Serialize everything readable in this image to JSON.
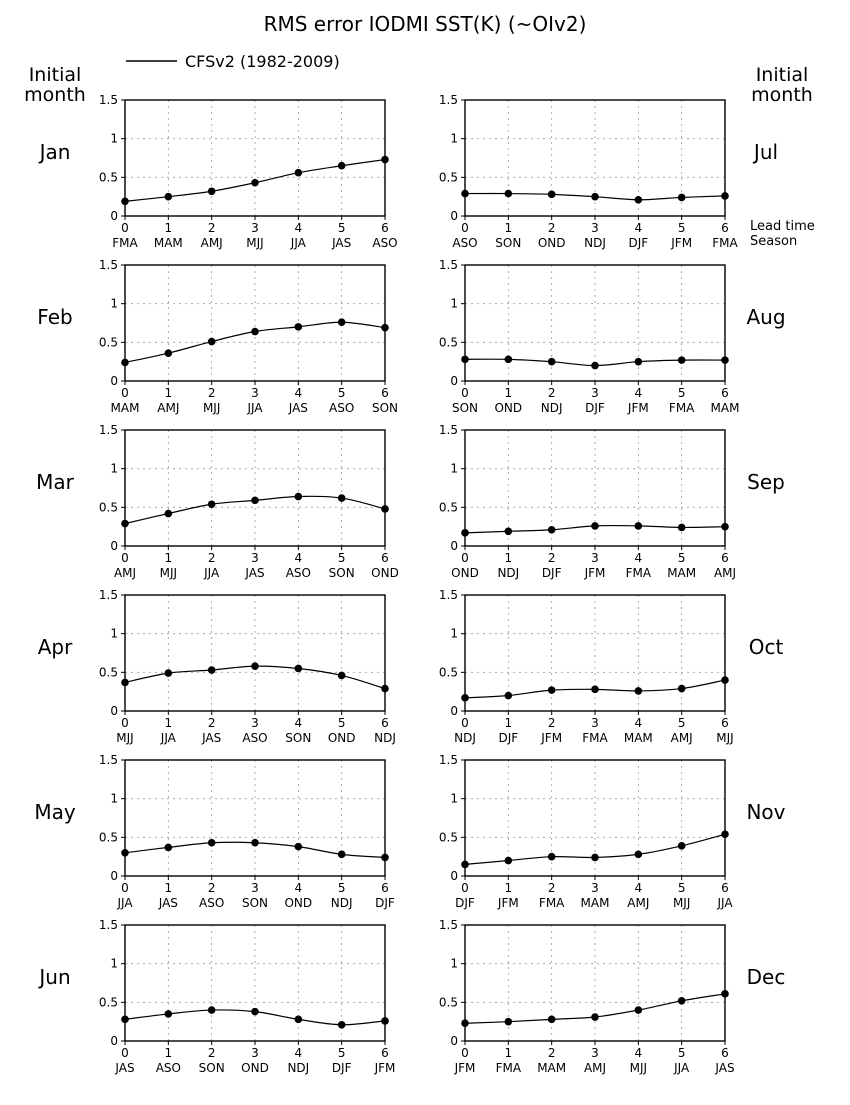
{
  "title": "RMS error IODMI SST(K) (~OIv2)",
  "legend": {
    "label": "CFSv2 (1982-2009)"
  },
  "side_labels": {
    "left": [
      "Initial",
      "month"
    ],
    "right": [
      "Initial",
      "month"
    ]
  },
  "axis_notes": {
    "lead": "Lead time",
    "season": "Season"
  },
  "chart_data": [
    {
      "type": "line",
      "panel_label": "Jan",
      "x": [
        0,
        1,
        2,
        3,
        4,
        5,
        6
      ],
      "x_season_labels": [
        "FMA",
        "MAM",
        "AMJ",
        "MJJ",
        "JJA",
        "JAS",
        "ASO"
      ],
      "series": [
        {
          "name": "CFSv2 (1982-2009)",
          "values": [
            0.19,
            0.25,
            0.32,
            0.43,
            0.56,
            0.65,
            0.73
          ]
        }
      ],
      "ylim": [
        0,
        1.5
      ],
      "yticks": [
        "0",
        "0.5",
        "1",
        "1.5"
      ],
      "grid": true
    },
    {
      "type": "line",
      "panel_label": "Jul",
      "x": [
        0,
        1,
        2,
        3,
        4,
        5,
        6
      ],
      "x_season_labels": [
        "ASO",
        "SON",
        "OND",
        "NDJ",
        "DJF",
        "JFM",
        "FMA"
      ],
      "series": [
        {
          "name": "CFSv2 (1982-2009)",
          "values": [
            0.29,
            0.29,
            0.28,
            0.25,
            0.21,
            0.24,
            0.26
          ]
        }
      ],
      "ylim": [
        0,
        1.5
      ],
      "yticks": [
        "0",
        "0.5",
        "1",
        "1.5"
      ],
      "grid": true
    },
    {
      "type": "line",
      "panel_label": "Feb",
      "x": [
        0,
        1,
        2,
        3,
        4,
        5,
        6
      ],
      "x_season_labels": [
        "MAM",
        "AMJ",
        "MJJ",
        "JJA",
        "JAS",
        "ASO",
        "SON"
      ],
      "series": [
        {
          "name": "CFSv2 (1982-2009)",
          "values": [
            0.24,
            0.36,
            0.51,
            0.64,
            0.7,
            0.76,
            0.69
          ]
        }
      ],
      "ylim": [
        0,
        1.5
      ],
      "yticks": [
        "0",
        "0.5",
        "1",
        "1.5"
      ],
      "grid": true
    },
    {
      "type": "line",
      "panel_label": "Aug",
      "x": [
        0,
        1,
        2,
        3,
        4,
        5,
        6
      ],
      "x_season_labels": [
        "SON",
        "OND",
        "NDJ",
        "DJF",
        "JFM",
        "FMA",
        "MAM"
      ],
      "series": [
        {
          "name": "CFSv2 (1982-2009)",
          "values": [
            0.28,
            0.28,
            0.25,
            0.2,
            0.25,
            0.27,
            0.27
          ]
        }
      ],
      "ylim": [
        0,
        1.5
      ],
      "yticks": [
        "0",
        "0.5",
        "1",
        "1.5"
      ],
      "grid": true
    },
    {
      "type": "line",
      "panel_label": "Mar",
      "x": [
        0,
        1,
        2,
        3,
        4,
        5,
        6
      ],
      "x_season_labels": [
        "AMJ",
        "MJJ",
        "JJA",
        "JAS",
        "ASO",
        "SON",
        "OND"
      ],
      "series": [
        {
          "name": "CFSv2 (1982-2009)",
          "values": [
            0.29,
            0.42,
            0.54,
            0.59,
            0.64,
            0.62,
            0.48
          ]
        }
      ],
      "ylim": [
        0,
        1.5
      ],
      "yticks": [
        "0",
        "0.5",
        "1",
        "1.5"
      ],
      "grid": true
    },
    {
      "type": "line",
      "panel_label": "Sep",
      "x": [
        0,
        1,
        2,
        3,
        4,
        5,
        6
      ],
      "x_season_labels": [
        "OND",
        "NDJ",
        "DJF",
        "JFM",
        "FMA",
        "MAM",
        "AMJ"
      ],
      "series": [
        {
          "name": "CFSv2 (1982-2009)",
          "values": [
            0.17,
            0.19,
            0.21,
            0.26,
            0.26,
            0.24,
            0.25
          ]
        }
      ],
      "ylim": [
        0,
        1.5
      ],
      "yticks": [
        "0",
        "0.5",
        "1",
        "1.5"
      ],
      "grid": true
    },
    {
      "type": "line",
      "panel_label": "Apr",
      "x": [
        0,
        1,
        2,
        3,
        4,
        5,
        6
      ],
      "x_season_labels": [
        "MJJ",
        "JJA",
        "JAS",
        "ASO",
        "SON",
        "OND",
        "NDJ"
      ],
      "series": [
        {
          "name": "CFSv2 (1982-2009)",
          "values": [
            0.37,
            0.49,
            0.53,
            0.58,
            0.55,
            0.46,
            0.29
          ]
        }
      ],
      "ylim": [
        0,
        1.5
      ],
      "yticks": [
        "0",
        "0.5",
        "1",
        "1.5"
      ],
      "grid": true
    },
    {
      "type": "line",
      "panel_label": "Oct",
      "x": [
        0,
        1,
        2,
        3,
        4,
        5,
        6
      ],
      "x_season_labels": [
        "NDJ",
        "DJF",
        "JFM",
        "FMA",
        "MAM",
        "AMJ",
        "MJJ"
      ],
      "series": [
        {
          "name": "CFSv2 (1982-2009)",
          "values": [
            0.17,
            0.2,
            0.27,
            0.28,
            0.26,
            0.29,
            0.4
          ]
        }
      ],
      "ylim": [
        0,
        1.5
      ],
      "yticks": [
        "0",
        "0.5",
        "1",
        "1.5"
      ],
      "grid": true
    },
    {
      "type": "line",
      "panel_label": "May",
      "x": [
        0,
        1,
        2,
        3,
        4,
        5,
        6
      ],
      "x_season_labels": [
        "JJA",
        "JAS",
        "ASO",
        "SON",
        "OND",
        "NDJ",
        "DJF"
      ],
      "series": [
        {
          "name": "CFSv2 (1982-2009)",
          "values": [
            0.3,
            0.37,
            0.43,
            0.43,
            0.38,
            0.28,
            0.24
          ]
        }
      ],
      "ylim": [
        0,
        1.5
      ],
      "yticks": [
        "0",
        "0.5",
        "1",
        "1.5"
      ],
      "grid": true
    },
    {
      "type": "line",
      "panel_label": "Nov",
      "x": [
        0,
        1,
        2,
        3,
        4,
        5,
        6
      ],
      "x_season_labels": [
        "DJF",
        "JFM",
        "FMA",
        "MAM",
        "AMJ",
        "MJJ",
        "JJA"
      ],
      "series": [
        {
          "name": "CFSv2 (1982-2009)",
          "values": [
            0.15,
            0.2,
            0.25,
            0.24,
            0.28,
            0.39,
            0.54
          ]
        }
      ],
      "ylim": [
        0,
        1.5
      ],
      "yticks": [
        "0",
        "0.5",
        "1",
        "1.5"
      ],
      "grid": true
    },
    {
      "type": "line",
      "panel_label": "Jun",
      "x": [
        0,
        1,
        2,
        3,
        4,
        5,
        6
      ],
      "x_season_labels": [
        "JAS",
        "ASO",
        "SON",
        "OND",
        "NDJ",
        "DJF",
        "JFM"
      ],
      "series": [
        {
          "name": "CFSv2 (1982-2009)",
          "values": [
            0.28,
            0.35,
            0.4,
            0.38,
            0.28,
            0.21,
            0.26
          ]
        }
      ],
      "ylim": [
        0,
        1.5
      ],
      "yticks": [
        "0",
        "0.5",
        "1",
        "1.5"
      ],
      "grid": true
    },
    {
      "type": "line",
      "panel_label": "Dec",
      "x": [
        0,
        1,
        2,
        3,
        4,
        5,
        6
      ],
      "x_season_labels": [
        "JFM",
        "FMA",
        "MAM",
        "AMJ",
        "MJJ",
        "JJA",
        "JAS"
      ],
      "series": [
        {
          "name": "CFSv2 (1982-2009)",
          "values": [
            0.23,
            0.25,
            0.28,
            0.31,
            0.4,
            0.52,
            0.61
          ]
        }
      ],
      "ylim": [
        0,
        1.5
      ],
      "yticks": [
        "0",
        "0.5",
        "1",
        "1.5"
      ],
      "grid": true
    }
  ]
}
